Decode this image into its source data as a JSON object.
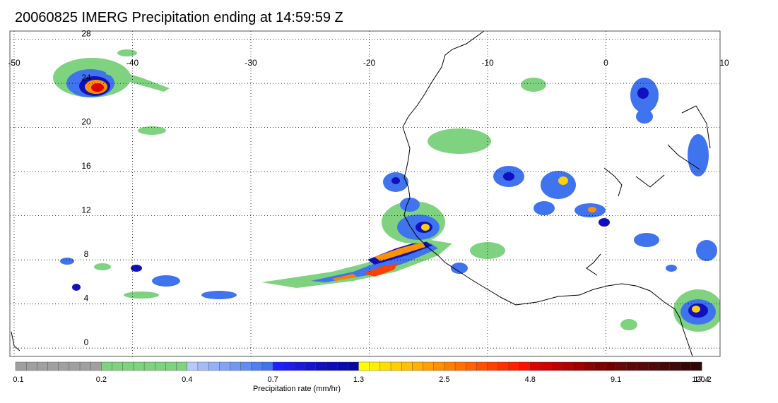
{
  "title": "20060825 IMERG Precipitation ending at 14:59:59 Z",
  "map": {
    "lon_range": [
      -50,
      10
    ],
    "lat_range": [
      -0.5,
      29
    ],
    "lon_ticks": [
      "-50",
      "-40",
      "-30",
      "-20",
      "-10",
      "0",
      "10"
    ],
    "lat_ticks": [
      "28",
      "24",
      "20",
      "16",
      "12",
      "8",
      "4",
      "0"
    ],
    "grid": "dotted"
  },
  "colorbar": {
    "title": "Precipitation rate (mm/hr)",
    "tick_labels": [
      "0.1",
      "0.2",
      "0.4",
      "0.7",
      "1.3",
      "2.5",
      "4.8",
      "9.1",
      "17.4",
      "33.1",
      "63.1",
      "120.2"
    ],
    "colors": [
      "#a0a0a0",
      "#a0a0a0",
      "#a0a0a0",
      "#a0a0a0",
      "#a0a0a0",
      "#a0a0a0",
      "#a0a0a0",
      "#a0a0a0",
      "#7fd27f",
      "#7fd27f",
      "#7fd27f",
      "#7fd27f",
      "#7fd27f",
      "#7fd27f",
      "#7fd27f",
      "#7fd27f",
      "#b8c8f8",
      "#a6bcf7",
      "#95b0f6",
      "#83a4f4",
      "#7298f2",
      "#618cf0",
      "#507ff0",
      "#4073ee",
      "#2020ff",
      "#1c1cf0",
      "#1818e0",
      "#1414d0",
      "#1010c0",
      "#0c0cb8",
      "#0a0ab0",
      "#0808a8",
      "#ffff00",
      "#fff000",
      "#ffe000",
      "#ffd000",
      "#ffc000",
      "#ffb000",
      "#ffa000",
      "#ff9000",
      "#ff8000",
      "#ff7000",
      "#ff6000",
      "#ff5000",
      "#ff4000",
      "#ff3000",
      "#ff2000",
      "#ff1000",
      "#e00000",
      "#d00000",
      "#c00000",
      "#b00000",
      "#a00000",
      "#900000",
      "#800000",
      "#700000",
      "#680808",
      "#600808",
      "#580808",
      "#500808",
      "#480808",
      "#400808",
      "#380808",
      "#300808"
    ]
  }
}
